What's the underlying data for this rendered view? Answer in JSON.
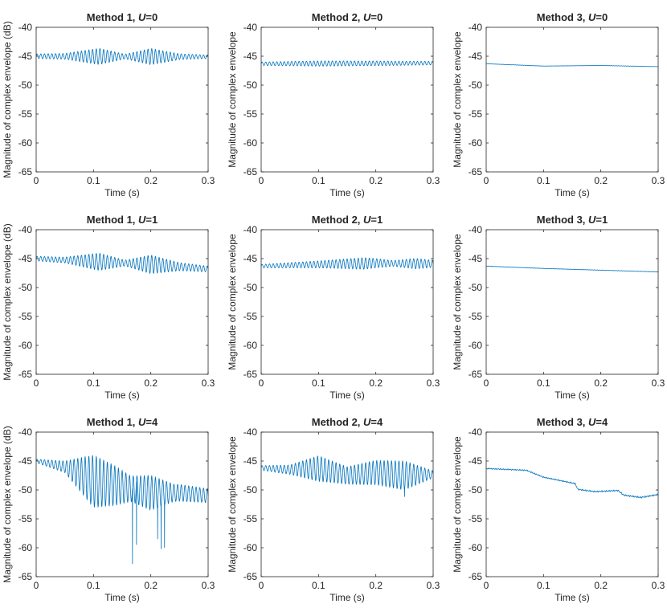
{
  "figure": {
    "background": "#ffffff",
    "line_color": "#0072BD",
    "axis_color": "#262626"
  },
  "chart_data": [
    {
      "type": "line",
      "row": 0,
      "col": 0,
      "title": "Method 1, ",
      "title_var": "U",
      "title_value": "=0",
      "xlabel": "Time (s)",
      "ylabel": "Magnitude of complex envelope  (dB)",
      "xlim": [
        0,
        0.3
      ],
      "ylim": [
        -65,
        -40
      ],
      "xticks": [
        0,
        0.1,
        0.2,
        0.3
      ],
      "xtick_labels": [
        "0",
        "0.1",
        "0.2",
        "0.3"
      ],
      "yticks": [
        -40,
        -45,
        -50,
        -55,
        -60,
        -65
      ],
      "ytick_labels": [
        "-40",
        "-45",
        "-50",
        "-55",
        "-60",
        "-65"
      ],
      "signal": {
        "mean": [
          [
            0,
            -45.0
          ],
          [
            0.3,
            -45.1
          ]
        ],
        "amp": [
          [
            0,
            0.4
          ],
          [
            0.05,
            0.5
          ],
          [
            0.11,
            1.4
          ],
          [
            0.155,
            0.4
          ],
          [
            0.2,
            1.4
          ],
          [
            0.25,
            0.5
          ],
          [
            0.3,
            0.3
          ]
        ],
        "freq": 155,
        "spikes": []
      }
    },
    {
      "type": "line",
      "row": 0,
      "col": 1,
      "title": "Method 2, ",
      "title_var": "U",
      "title_value": "=0",
      "xlabel": "Time (s)",
      "ylabel": "Magnitude of complex envelope",
      "xlim": [
        0,
        0.3
      ],
      "ylim": [
        -65,
        -40
      ],
      "xticks": [
        0,
        0.1,
        0.2,
        0.3
      ],
      "xtick_labels": [
        "0",
        "0.1",
        "0.2",
        "0.3"
      ],
      "yticks": [
        -40,
        -45,
        -50,
        -55,
        -60,
        -65
      ],
      "ytick_labels": [
        "-40",
        "-45",
        "-50",
        "-55",
        "-60",
        "-65"
      ],
      "signal": {
        "mean": [
          [
            0,
            -46.3
          ],
          [
            0.3,
            -46.2
          ]
        ],
        "amp": [
          [
            0,
            0.3
          ],
          [
            0.1,
            0.45
          ],
          [
            0.2,
            0.4
          ],
          [
            0.3,
            0.3
          ]
        ],
        "freq": 155,
        "spikes": []
      }
    },
    {
      "type": "line",
      "row": 0,
      "col": 2,
      "title": "Method 3, ",
      "title_var": "U",
      "title_value": "=0",
      "xlabel": "Time (s)",
      "ylabel": "Magnitude of complex envelope",
      "xlim": [
        0,
        0.3
      ],
      "ylim": [
        -65,
        -40
      ],
      "xticks": [
        0,
        0.1,
        0.2,
        0.3
      ],
      "xtick_labels": [
        "0",
        "0.1",
        "0.2",
        "0.3"
      ],
      "yticks": [
        -40,
        -45,
        -50,
        -55,
        -60,
        -65
      ],
      "ytick_labels": [
        "-40",
        "-45",
        "-50",
        "-55",
        "-60",
        "-65"
      ],
      "signal": {
        "mean": [
          [
            0,
            -46.3
          ],
          [
            0.1,
            -46.7
          ],
          [
            0.2,
            -46.6
          ],
          [
            0.3,
            -46.8
          ]
        ],
        "amp": [
          [
            0,
            0.03
          ],
          [
            0.3,
            0.03
          ]
        ],
        "freq": 300,
        "spikes": []
      }
    },
    {
      "type": "line",
      "row": 1,
      "col": 0,
      "title": "Method 1, ",
      "title_var": "U",
      "title_value": "=1",
      "xlabel": "Time (s)",
      "ylabel": "Magnitude of complex envelope  (dB)",
      "xlim": [
        0,
        0.3
      ],
      "ylim": [
        -65,
        -40
      ],
      "xticks": [
        0,
        0.1,
        0.2,
        0.3
      ],
      "xtick_labels": [
        "0",
        "0.1",
        "0.2",
        "0.3"
      ],
      "yticks": [
        -40,
        -45,
        -50,
        -55,
        -60,
        -65
      ],
      "ytick_labels": [
        "-40",
        "-45",
        "-50",
        "-55",
        "-60",
        "-65"
      ],
      "signal": {
        "mean": [
          [
            0,
            -45.0
          ],
          [
            0.1,
            -45.5
          ],
          [
            0.2,
            -46.0
          ],
          [
            0.3,
            -46.8
          ]
        ],
        "amp": [
          [
            0,
            0.4
          ],
          [
            0.05,
            0.5
          ],
          [
            0.11,
            1.5
          ],
          [
            0.155,
            0.5
          ],
          [
            0.2,
            1.6
          ],
          [
            0.25,
            0.7
          ],
          [
            0.3,
            0.5
          ]
        ],
        "freq": 155,
        "spikes": []
      }
    },
    {
      "type": "line",
      "row": 1,
      "col": 1,
      "title": "Method 2, ",
      "title_var": "U",
      "title_value": "=1",
      "xlabel": "Time (s)",
      "ylabel": "Magnitude of complex envelope",
      "xlim": [
        0,
        0.3
      ],
      "ylim": [
        -65,
        -40
      ],
      "xticks": [
        0,
        0.1,
        0.2,
        0.3
      ],
      "xtick_labels": [
        "0",
        "0.1",
        "0.2",
        "0.3"
      ],
      "yticks": [
        -40,
        -45,
        -50,
        -55,
        -60,
        -65
      ],
      "ytick_labels": [
        "-40",
        "-45",
        "-50",
        "-55",
        "-60",
        "-65"
      ],
      "signal": {
        "mean": [
          [
            0,
            -46.3
          ],
          [
            0.1,
            -46.0
          ],
          [
            0.2,
            -45.8
          ],
          [
            0.3,
            -45.9
          ]
        ],
        "amp": [
          [
            0,
            0.3
          ],
          [
            0.1,
            0.6
          ],
          [
            0.18,
            1.0
          ],
          [
            0.23,
            0.5
          ],
          [
            0.27,
            0.9
          ],
          [
            0.3,
            0.6
          ]
        ],
        "freq": 155,
        "spikes": []
      }
    },
    {
      "type": "line",
      "row": 1,
      "col": 2,
      "title": "Method 3, ",
      "title_var": "U",
      "title_value": "=1",
      "xlabel": "Time (s)",
      "ylabel": "Magnitude of complex envelope",
      "xlim": [
        0,
        0.3
      ],
      "ylim": [
        -65,
        -40
      ],
      "xticks": [
        0,
        0.1,
        0.2,
        0.3
      ],
      "xtick_labels": [
        "0",
        "0.1",
        "0.2",
        "0.3"
      ],
      "yticks": [
        -40,
        -45,
        -50,
        -55,
        -60,
        -65
      ],
      "ytick_labels": [
        "-40",
        "-45",
        "-50",
        "-55",
        "-60",
        "-65"
      ],
      "signal": {
        "mean": [
          [
            0,
            -46.3
          ],
          [
            0.1,
            -46.7
          ],
          [
            0.2,
            -47.0
          ],
          [
            0.3,
            -47.3
          ]
        ],
        "amp": [
          [
            0,
            0.04
          ],
          [
            0.3,
            0.04
          ]
        ],
        "freq": 300,
        "spikes": []
      }
    },
    {
      "type": "line",
      "row": 2,
      "col": 0,
      "title": "Method 1, ",
      "title_var": "U",
      "title_value": "=4",
      "xlabel": "Time (s)",
      "ylabel": "Magnitude of complex envelope (dB)",
      "xlim": [
        0,
        0.3
      ],
      "ylim": [
        -65,
        -40
      ],
      "xticks": [
        0,
        0.1,
        0.2,
        0.3
      ],
      "xtick_labels": [
        "0",
        "0.1",
        "0.2",
        "0.3"
      ],
      "yticks": [
        -40,
        -45,
        -50,
        -55,
        -60,
        -65
      ],
      "ytick_labels": [
        "-40",
        "-45",
        "-50",
        "-55",
        "-60",
        "-65"
      ],
      "signal": {
        "mean": [
          [
            0,
            -45.0
          ],
          [
            0.05,
            -46.0
          ],
          [
            0.1,
            -48.5
          ],
          [
            0.15,
            -49.5
          ],
          [
            0.2,
            -50.5
          ],
          [
            0.25,
            -50.5
          ],
          [
            0.3,
            -51.0
          ]
        ],
        "amp": [
          [
            0,
            0.3
          ],
          [
            0.05,
            1.0
          ],
          [
            0.1,
            4.5
          ],
          [
            0.135,
            3.5
          ],
          [
            0.165,
            2.2
          ],
          [
            0.2,
            3.0
          ],
          [
            0.24,
            1.5
          ],
          [
            0.3,
            1.2
          ]
        ],
        "freq": 155,
        "spikes": [
          [
            0.168,
            -62.8
          ],
          [
            0.175,
            -59.5
          ],
          [
            0.218,
            -60.2
          ],
          [
            0.224,
            -60.0
          ],
          [
            0.212,
            -58.5
          ]
        ]
      }
    },
    {
      "type": "line",
      "row": 2,
      "col": 1,
      "title": "Method 2, ",
      "title_var": "U",
      "title_value": "=4",
      "xlabel": "Time (s)",
      "ylabel": "Magnitude of complex envelope",
      "xlim": [
        0,
        0.3
      ],
      "ylim": [
        -65,
        -40
      ],
      "xticks": [
        0,
        0.1,
        0.2,
        0.3
      ],
      "xtick_labels": [
        "0",
        "0.1",
        "0.2",
        "0.3"
      ],
      "yticks": [
        -40,
        -45,
        -50,
        -55,
        -60,
        -65
      ],
      "ytick_labels": [
        "-40",
        "-45",
        "-50",
        "-55",
        "-60",
        "-65"
      ],
      "signal": {
        "mean": [
          [
            0,
            -46.2
          ],
          [
            0.05,
            -46.5
          ],
          [
            0.1,
            -46.3
          ],
          [
            0.15,
            -47.5
          ],
          [
            0.2,
            -47.0
          ],
          [
            0.25,
            -47.5
          ],
          [
            0.3,
            -47.3
          ]
        ],
        "amp": [
          [
            0,
            0.4
          ],
          [
            0.05,
            0.8
          ],
          [
            0.1,
            2.2
          ],
          [
            0.15,
            1.5
          ],
          [
            0.19,
            2.0
          ],
          [
            0.25,
            2.5
          ],
          [
            0.3,
            0.6
          ]
        ],
        "freq": 155,
        "spikes": [
          [
            0.25,
            -51.2
          ]
        ]
      }
    },
    {
      "type": "line",
      "row": 2,
      "col": 2,
      "title": "Method 3, ",
      "title_var": "U",
      "title_value": "=4",
      "xlabel": "Time (s)",
      "ylabel": "Magnitude of complex envelope",
      "xlim": [
        0,
        0.3
      ],
      "ylim": [
        -65,
        -40
      ],
      "xticks": [
        0,
        0.1,
        0.2,
        0.3
      ],
      "xtick_labels": [
        "0",
        "0.1",
        "0.2",
        "0.3"
      ],
      "yticks": [
        -40,
        -45,
        -50,
        -55,
        -60,
        -65
      ],
      "ytick_labels": [
        "-40",
        "-45",
        "-50",
        "-55",
        "-60",
        "-65"
      ],
      "signal": {
        "mean": [
          [
            0,
            -46.3
          ],
          [
            0.07,
            -46.6
          ],
          [
            0.1,
            -47.8
          ],
          [
            0.14,
            -48.6
          ],
          [
            0.155,
            -48.9
          ],
          [
            0.16,
            -49.9
          ],
          [
            0.19,
            -50.3
          ],
          [
            0.23,
            -50.1
          ],
          [
            0.24,
            -50.9
          ],
          [
            0.27,
            -51.3
          ],
          [
            0.3,
            -50.8
          ]
        ],
        "amp": [
          [
            0,
            0.1
          ],
          [
            0.3,
            0.15
          ]
        ],
        "freq": 300,
        "spikes": []
      }
    }
  ]
}
